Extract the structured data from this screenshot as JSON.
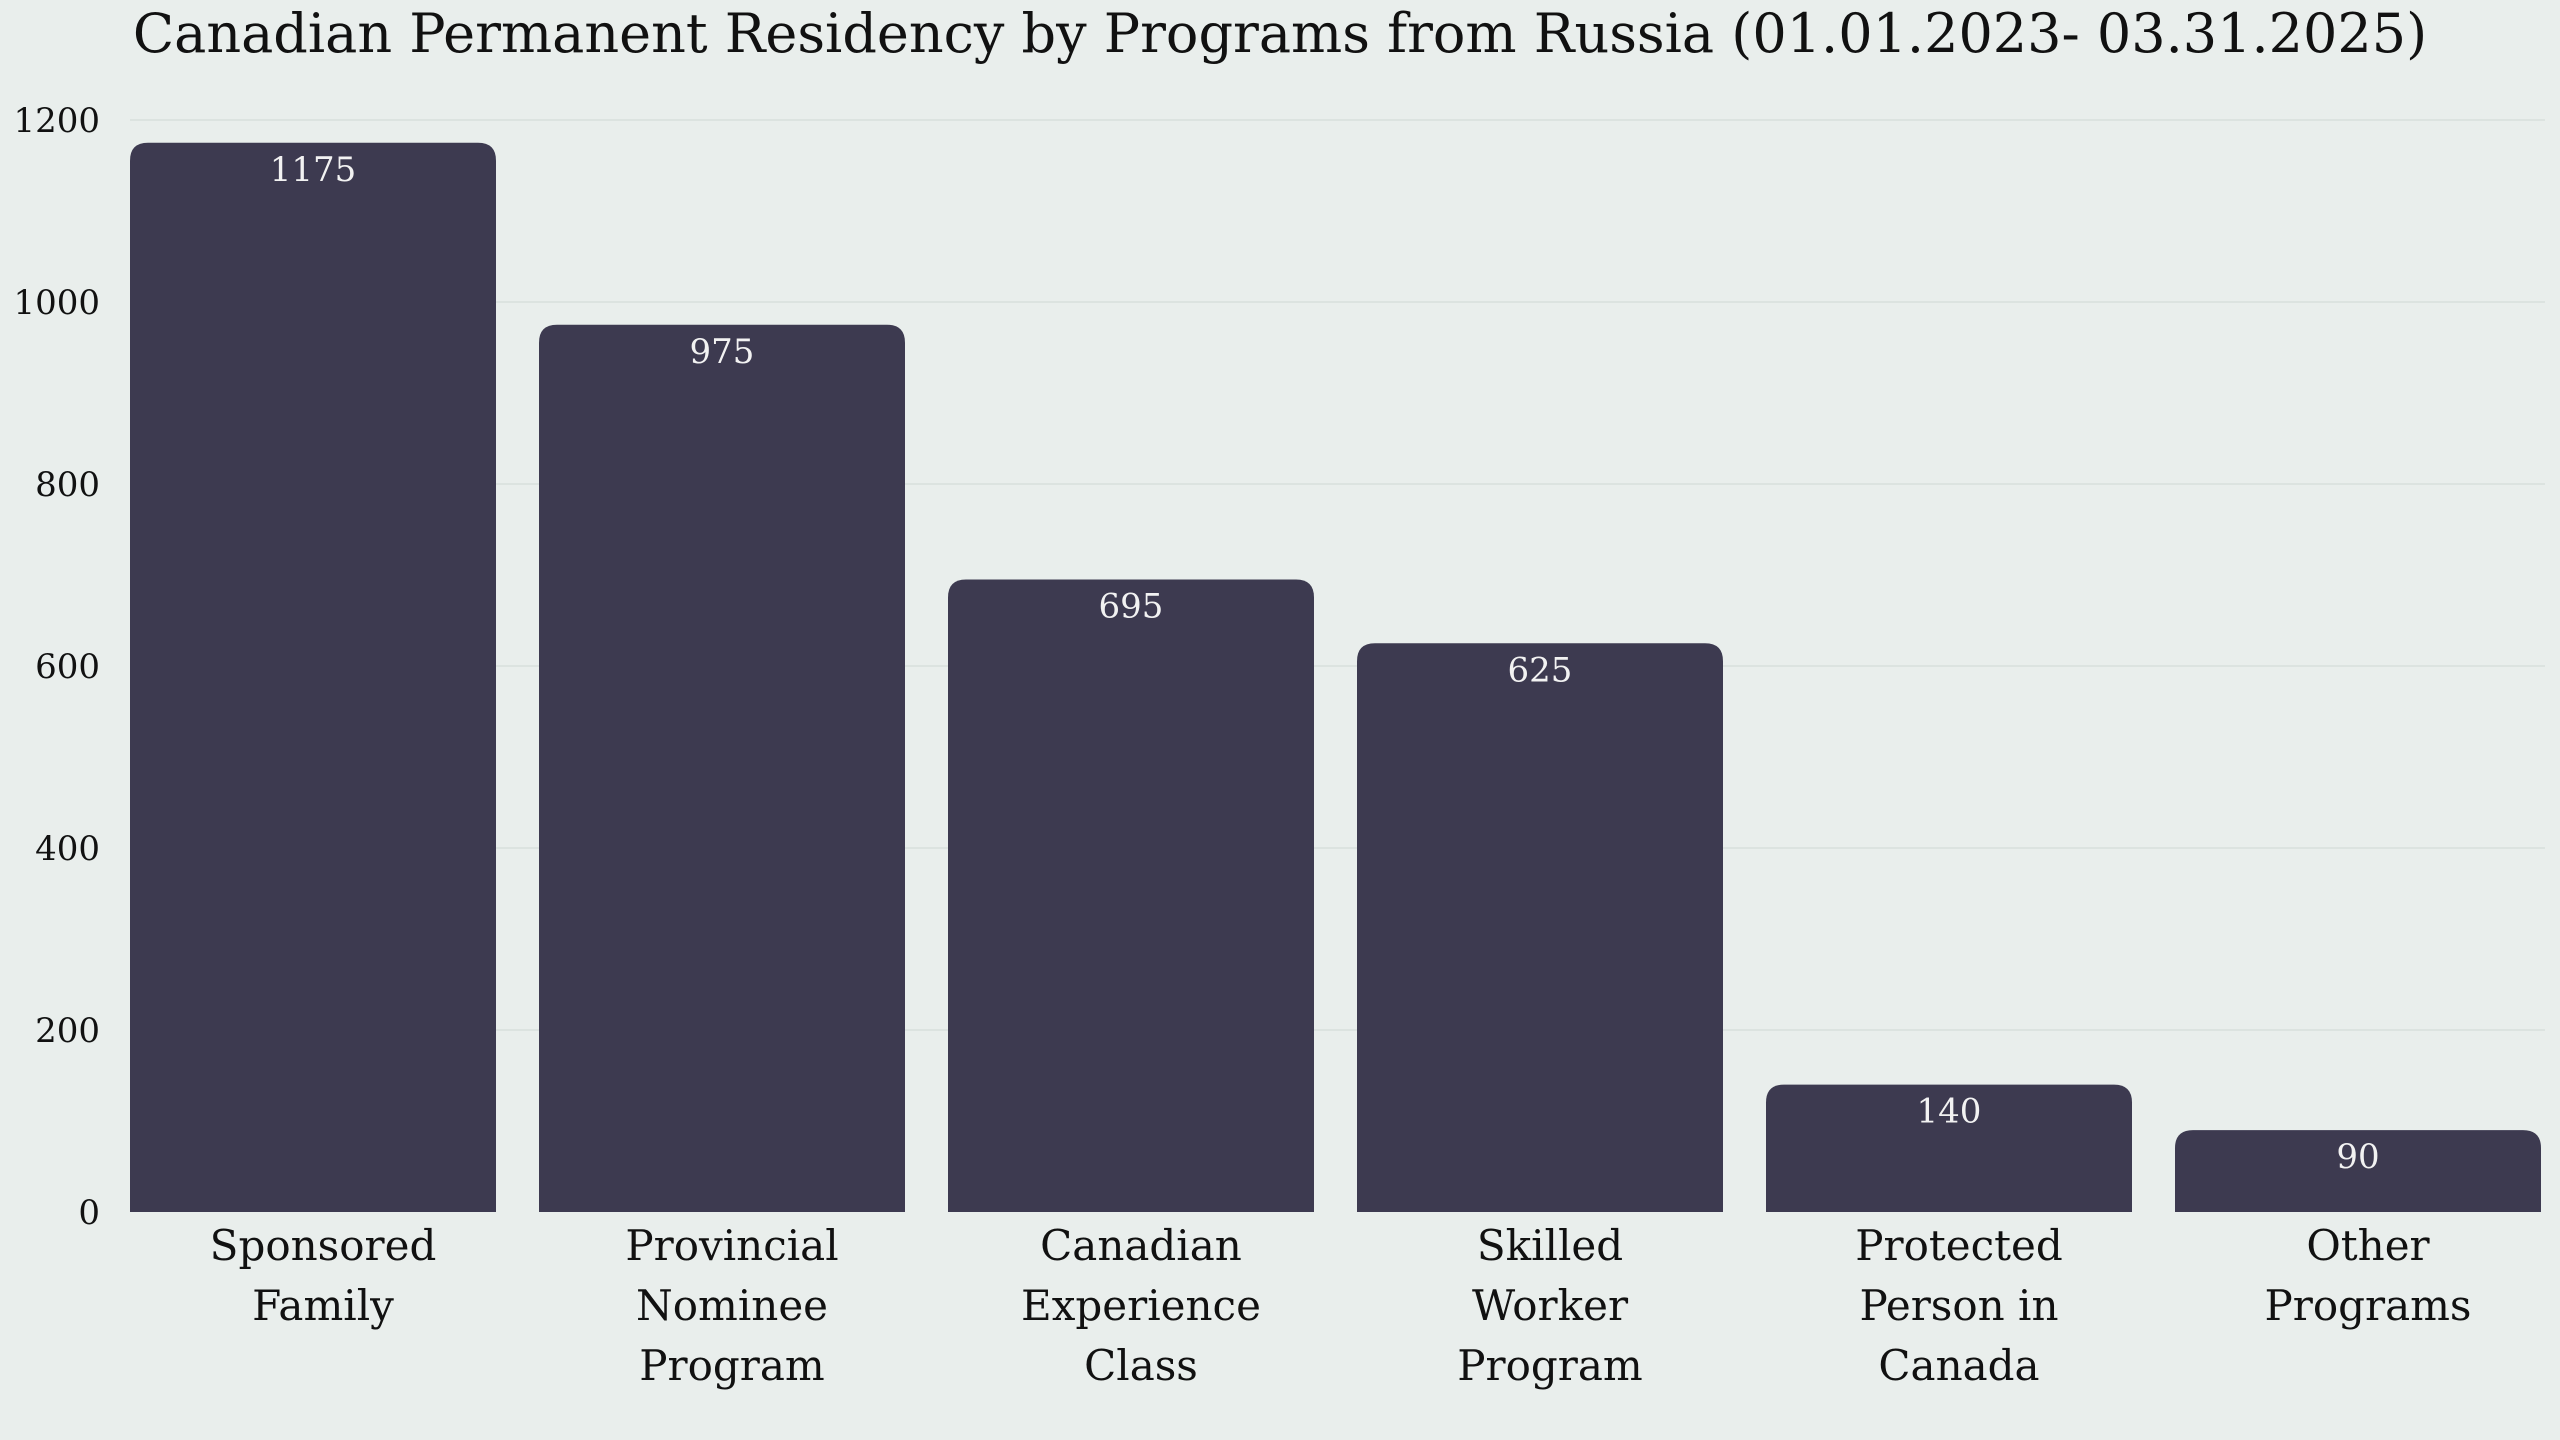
{
  "chart_data": {
    "type": "bar",
    "title": "Canadian Permanent Residency by Programs from Russia (01.01.2023- 03.31.2025)",
    "categories": [
      [
        "Sponsored",
        "Family"
      ],
      [
        "Provincial",
        "Nominee",
        "Program"
      ],
      [
        "Canadian",
        "Experience",
        "Class"
      ],
      [
        "Skilled",
        "Worker",
        "Program"
      ],
      [
        "Protected",
        "Person in",
        "Canada"
      ],
      [
        "Other",
        "Programs"
      ]
    ],
    "values": [
      1175,
      975,
      695,
      625,
      140,
      90
    ],
    "data_labels": [
      "1175",
      "975",
      "695",
      "625",
      "140",
      "90"
    ],
    "ylim": [
      0,
      1200
    ],
    "yticks": [
      0,
      200,
      400,
      600,
      800,
      1000,
      1200
    ],
    "ytick_labels": [
      "0",
      "200",
      "400",
      "600",
      "800",
      "1000",
      "1200"
    ],
    "xlabel": "",
    "ylabel": "",
    "grid": true,
    "legend": "none",
    "colors": {
      "bar": "#3d3a50",
      "background": "#e9eeec",
      "grid": "#d8dfdc",
      "value_label": "#f2f2f2",
      "text": "#111111"
    }
  }
}
